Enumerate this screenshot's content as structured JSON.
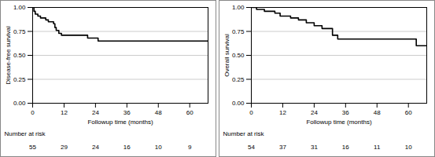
{
  "chart_data": [
    {
      "type": "line",
      "line_style": "step",
      "color": "#000000",
      "grid": true,
      "ylabel": "Disease-free survival",
      "xlabel": "Followup time (months)",
      "x": [
        0,
        0.5,
        1,
        2,
        3,
        5,
        6,
        8,
        8.5,
        9,
        10,
        11,
        21,
        25,
        67
      ],
      "values": [
        1.0,
        0.96,
        0.93,
        0.91,
        0.89,
        0.87,
        0.85,
        0.83,
        0.79,
        0.76,
        0.73,
        0.71,
        0.68,
        0.65,
        0.65
      ],
      "xlim": [
        0,
        67
      ],
      "ylim": [
        0,
        1
      ],
      "xticks": [
        0,
        12,
        24,
        36,
        48,
        60
      ],
      "yticks": [
        {
          "value": 0,
          "label": "0.00"
        },
        {
          "value": 0.25,
          "label": "0.25"
        },
        {
          "value": 0.5,
          "label": "0.50"
        },
        {
          "value": 0.75,
          "label": "0.75"
        },
        {
          "value": 1,
          "label": "1.00"
        }
      ],
      "at_risk": {
        "label": "Number at risk",
        "x": [
          0,
          12,
          24,
          36,
          48,
          60
        ],
        "values": [
          55,
          29,
          24,
          16,
          10,
          9
        ]
      }
    },
    {
      "type": "line",
      "line_style": "step",
      "color": "#000000",
      "grid": true,
      "ylabel": "Overall survival",
      "xlabel": "Followup time (months)",
      "x": [
        0,
        2,
        5,
        9,
        11,
        15,
        18,
        21,
        24,
        27,
        31,
        33,
        63,
        67
      ],
      "values": [
        1.0,
        0.98,
        0.96,
        0.94,
        0.91,
        0.89,
        0.87,
        0.84,
        0.81,
        0.78,
        0.71,
        0.67,
        0.6,
        0.6
      ],
      "xlim": [
        0,
        67
      ],
      "ylim": [
        0,
        1
      ],
      "xticks": [
        0,
        12,
        24,
        36,
        48,
        60
      ],
      "yticks": [
        {
          "value": 0,
          "label": "0.00"
        },
        {
          "value": 0.25,
          "label": "0.25"
        },
        {
          "value": 0.5,
          "label": "0.50"
        },
        {
          "value": 0.75,
          "label": "0.75"
        },
        {
          "value": 1,
          "label": "1.00"
        }
      ],
      "at_risk": {
        "label": "Number at risk",
        "x": [
          0,
          12,
          24,
          36,
          48,
          60
        ],
        "values": [
          54,
          37,
          31,
          16,
          11,
          10
        ]
      }
    }
  ]
}
